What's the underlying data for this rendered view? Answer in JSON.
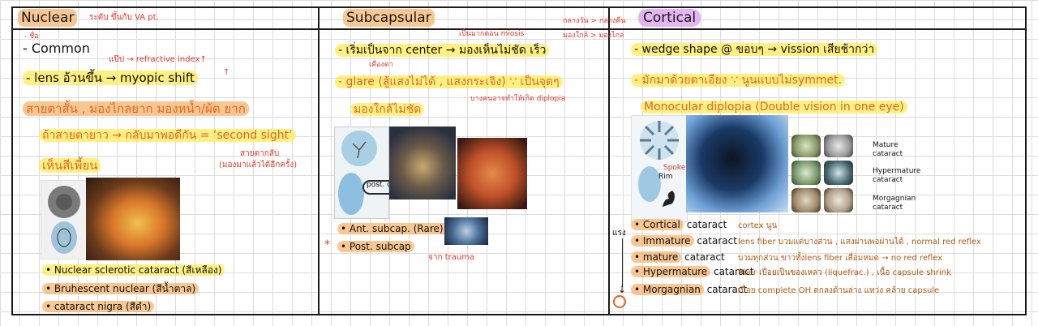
{
  "nuclear": {
    "title": "Nuclear",
    "title_note": "ระดับ ขึ้นกับ VA pt.",
    "note_pt": "- ชื่อ",
    "common": "- Common",
    "lens_line": "- lens อ้วนขึ้น → myopic shift",
    "lens_note1": "แป๊ป → refractive index↑",
    "lens_note2": "↑",
    "near_vision": "สายตาสั้น , มองไกลยาก มองหน้ำ/ผ้ด ยาก",
    "second_sight_line": "ถ้าสายตายาว → กลับมาพอดีกัน = ‘second sight’",
    "second_sight_note1": "สายตากลับ",
    "second_sight_note2": "(มองมาแล้วได้อีกครั้ง)",
    "color_shift": "เห็นสีเพี้ยน",
    "item1": "• Nuclear sclerotic cataract (สีเหลือง)",
    "item2": "• Bruhescent nuclear (สีน้ำตาล)",
    "item3": "• cataract nigra (สีดำ)"
  },
  "subcapsular": {
    "title": "Subcapsular",
    "top_note1": "เป็นมากตอน miosis",
    "top_note2": "กลางวัน > กลางคืน",
    "top_note3": "มองใกล้ > มองไกล",
    "line1": "- เริ่มเป็นจาก center → มองเห็นไม่ชัด เร็ว",
    "glare_note": "เคืองตา",
    "glare_line": "- glare (สู้แสงไม่ได้ , แสงกระเจิง) ∵ เป็นจุดๆ",
    "diplopia_note": "บางคนอาจทำให้เกิด diplopia",
    "near_blur": "มองใกล้ไม่ชัด",
    "ant_subcap": "• Ant. subcap. (Rare) →",
    "post_subcap": "• Post. subcap",
    "trauma": "จาก trauma",
    "label_post_cap": "post. cap"
  },
  "cortical": {
    "title": "Cortical",
    "line1": "- wedge shape @ ขอบๆ → vission เสียช้ากว่า",
    "line2": "- มักมาด้วยตาเอียง ∵ นูนแบบไม่symmet.",
    "diplopia": "Monocular diplopia (Double vision in one eye)",
    "label_spoke": "Spoke wheel",
    "label_rim": "Rim",
    "label_mature": "Mature cataract",
    "label_hypermature": "Hypermature cataract",
    "label_morgagnian": "Morgagnian cataract",
    "axis_word": "แรง",
    "stages": [
      {
        "name": "Cortical",
        "type": "cataract",
        "desc": "cortex นูน"
      },
      {
        "name": "Immature",
        "type": "cataract",
        "desc": "lens fiber บวมแต่บางส่วน , แสงผ่านพอผ่านได้ , normal red reflex"
      },
      {
        "name": "mature",
        "type": "cataract",
        "desc": "บวมทุกส่วน ขาวทั้งlens fiber เสื่อมหมด → no red reflex"
      },
      {
        "name": "Hypermature",
        "type": "cataract",
        "desc": "fiber เปื่อยเป็นของเหลว (liquefrac.) , เนื้อ capsule shrink"
      },
      {
        "name": "Morgagnian",
        "type": "cataract",
        "desc": "เปื่อย complete  OH ตกลงด้านล่าง แหว่ง คล้าย capsule"
      }
    ]
  }
}
